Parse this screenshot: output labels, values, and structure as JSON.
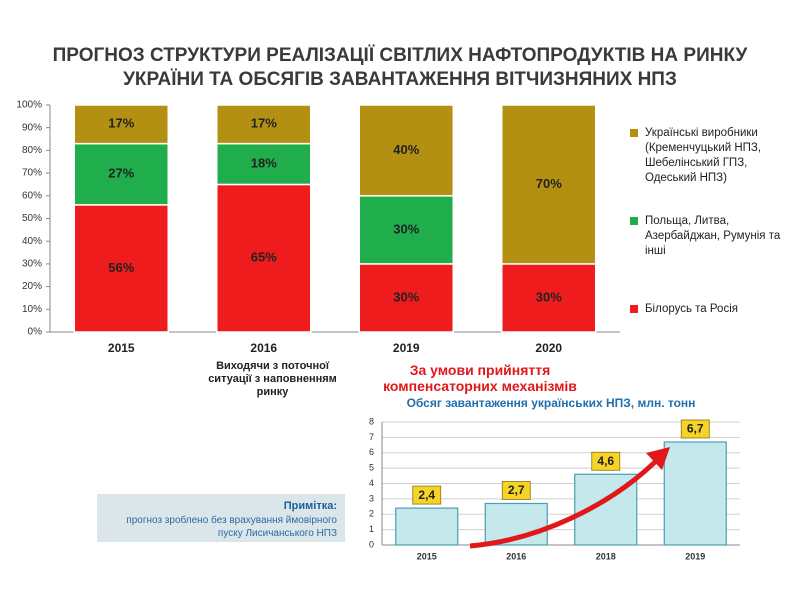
{
  "header": {
    "title": "ПРОГНОЗ СТРУКТУРИ РЕАЛІЗАЦІЇ СВІТЛИХ НАФТОПРОДУКТІВ  НА РИНКУ УКРАЇНИ ТА ОБСЯГІВ ЗАВАНТАЖЕННЯ ВІТЧИЗНЯНИХ НПЗ"
  },
  "chart_data": [
    {
      "type": "stacked_bar",
      "categories": [
        "2015",
        "2016",
        "2019",
        "2020"
      ],
      "series": [
        {
          "name": "Білорусь та Росія",
          "color": "#ee1c1c",
          "values": [
            56,
            65,
            30,
            30
          ],
          "value_labels": [
            "56%",
            "65%",
            "30%",
            "30%"
          ]
        },
        {
          "name": "Польща, Литва, Азербайджан, Румунія та інші",
          "color": "#1fae4b",
          "values": [
            27,
            18,
            30,
            null
          ],
          "value_labels": [
            "27%",
            "18%",
            "30%",
            null
          ]
        },
        {
          "name": "Українські виробники (Кременчуцький НПЗ, Шебелінський ГПЗ, Одеський НПЗ)",
          "color": "#b38f12",
          "values": [
            17,
            17,
            40,
            70
          ],
          "value_labels": [
            "17%",
            "17%",
            "40%",
            "70%"
          ]
        }
      ],
      "ylim": [
        0,
        100
      ],
      "yticks": [
        {
          "value": 0,
          "label": "0%"
        },
        {
          "value": 10,
          "label": "10%"
        },
        {
          "value": 20,
          "label": "20%"
        },
        {
          "value": 30,
          "label": "30%"
        },
        {
          "value": 40,
          "label": "40%"
        },
        {
          "value": 50,
          "label": "50%"
        },
        {
          "value": 60,
          "label": "60%"
        },
        {
          "value": 70,
          "label": "70%"
        },
        {
          "value": 80,
          "label": "80%"
        },
        {
          "value": 90,
          "label": "90%"
        },
        {
          "value": 100,
          "label": "100%"
        }
      ],
      "legend": "right"
    },
    {
      "type": "bar",
      "title": "Обсяг завантаження українських НПЗ, млн. тонн",
      "categories": [
        "2015",
        "2016",
        "2018",
        "2019"
      ],
      "values": [
        2.4,
        2.7,
        4.6,
        6.7
      ],
      "value_labels": [
        "2,4",
        "2,7",
        "4,6",
        "6,7"
      ],
      "color": "#c4e8ec",
      "ylim": [
        0,
        8
      ],
      "yticks": [
        0,
        1,
        2,
        3,
        4,
        5,
        6,
        7,
        8
      ],
      "grid": true
    }
  ],
  "annotations": {
    "current": "Виходячи з поточної ситуації з наповненням ринку",
    "conditional": "За умови прийняття компенсаторних механізмів"
  },
  "note": {
    "label": "Примітка:",
    "text": "прогноз зроблено без врахування ймовірного пуску Лисичанського НПЗ"
  }
}
